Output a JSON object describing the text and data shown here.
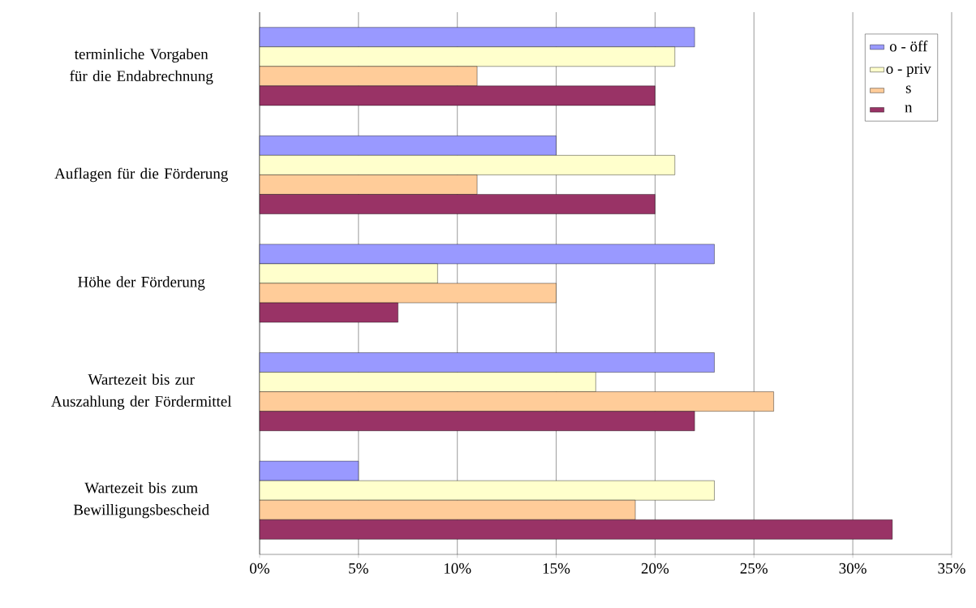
{
  "chart_data": {
    "type": "bar",
    "orientation": "horizontal",
    "categories": [
      "terminliche Vorgaben für die Endabrechnung",
      "Auflagen für die Förderung",
      "Höhe der Förderung",
      "Wartezeit bis zur Auszahlung der Fördermittel",
      "Wartezeit bis zum Bewilligungsbescheid"
    ],
    "series": [
      {
        "name": "o - öff",
        "color": "#9999ff",
        "values": [
          22,
          15,
          23,
          23,
          5
        ]
      },
      {
        "name": "o - priv",
        "color": "#ffffcc",
        "values": [
          21,
          21,
          9,
          17,
          23
        ]
      },
      {
        "name": "s",
        "color": "#ffcc99",
        "values": [
          11,
          11,
          15,
          26,
          19
        ]
      },
      {
        "name": "n",
        "color": "#993366",
        "values": [
          20,
          20,
          7,
          22,
          32
        ]
      }
    ],
    "xlim": [
      0,
      35
    ],
    "xticks": [
      {
        "value": 0,
        "label": "0%"
      },
      {
        "value": 5,
        "label": "5%"
      },
      {
        "value": 10,
        "label": "10%"
      },
      {
        "value": 15,
        "label": "15%"
      },
      {
        "value": 20,
        "label": "20%"
      },
      {
        "value": 25,
        "label": "25%"
      },
      {
        "value": 30,
        "label": "30%"
      },
      {
        "value": 35,
        "label": "35%"
      }
    ],
    "grid": "x",
    "legend": "top right"
  }
}
